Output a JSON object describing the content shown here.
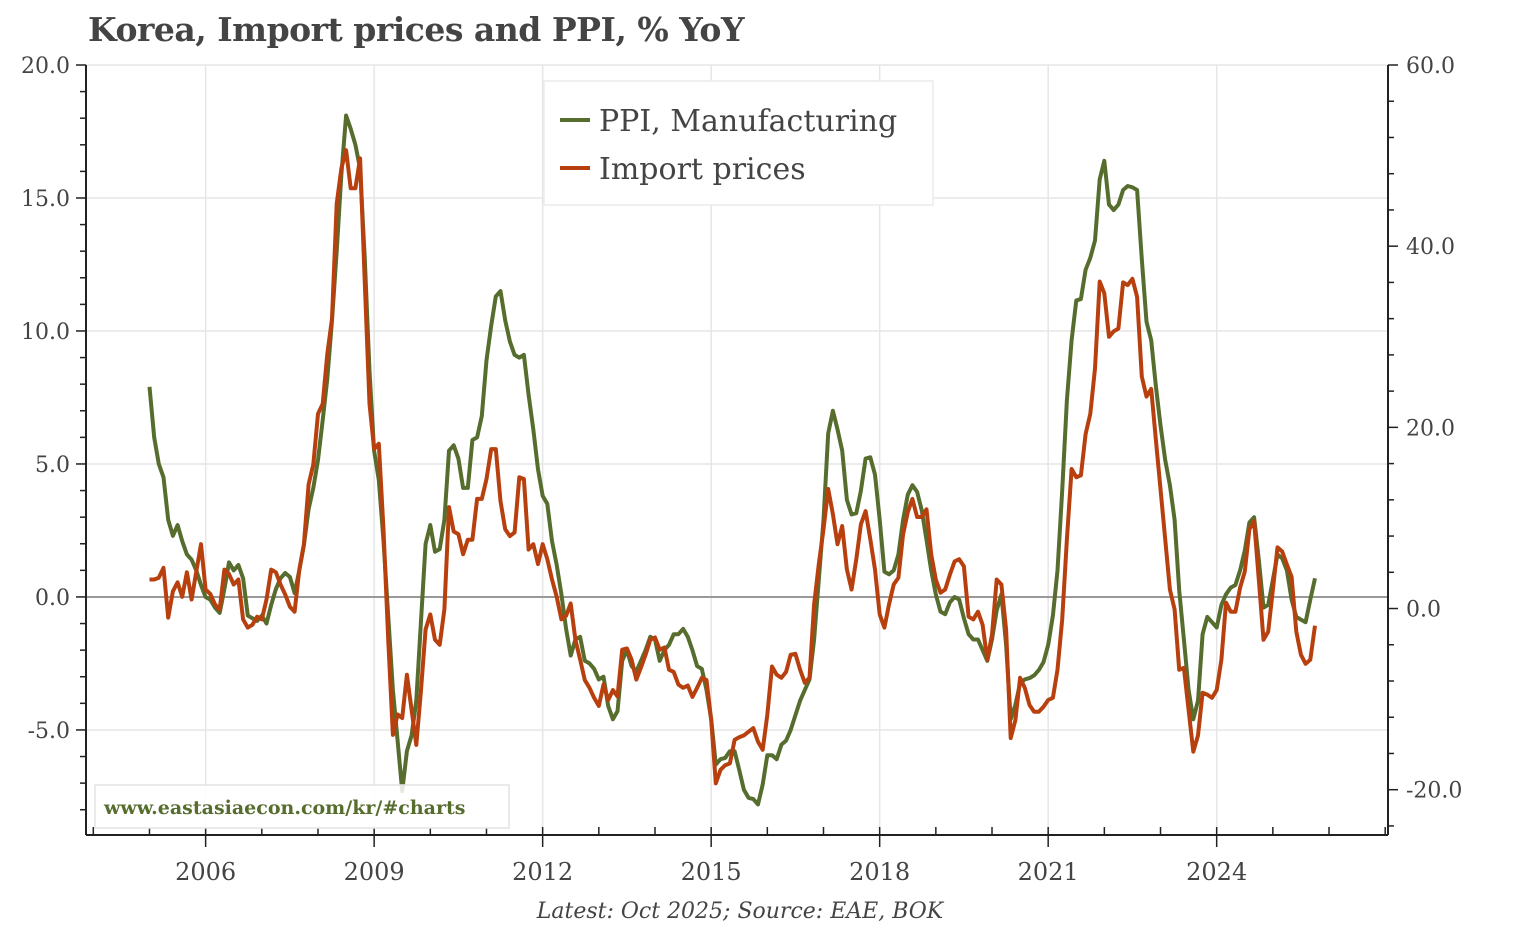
{
  "chart_data": {
    "type": "line",
    "title": "Korea, Import prices and PPI, % YoY",
    "source_note": "Latest: Oct 2025; Source: EAE, BOK",
    "watermark": "www.eastasiaecon.com/kr/#charts",
    "x_start": "2005-01",
    "x_frequency": "monthly",
    "x_ticks": [
      "2006",
      "2009",
      "2012",
      "2015",
      "2018",
      "2021",
      "2024"
    ],
    "xlim": [
      2003.87,
      2027.05
    ],
    "left_axis": {
      "series": "PPI, Manufacturing",
      "ylim": [
        -8.95,
        20.0
      ],
      "ticks": [
        "20.0",
        "15.0",
        "10.0",
        "5.0",
        "0.0",
        "-5.0"
      ],
      "tick_values": [
        20,
        15,
        10,
        5,
        0,
        -5
      ]
    },
    "right_axis": {
      "series": "Import prices",
      "ylim": [
        -25.0,
        60.0
      ],
      "ticks": [
        "60.0",
        "40.0",
        "20.0",
        "0.0",
        "-20.0"
      ],
      "tick_values": [
        60,
        40,
        20,
        0,
        -20
      ]
    },
    "grid": true,
    "legend_position": "top-center",
    "series": [
      {
        "name": "PPI, Manufacturing",
        "axis": "left",
        "color": "#566d2e",
        "values": [
          7.9,
          6.0,
          5.0,
          4.5,
          2.9,
          2.3,
          2.7,
          2.1,
          1.6,
          1.4,
          1.0,
          0.45,
          0.0,
          -0.1,
          -0.4,
          -0.6,
          0.3,
          1.3,
          1.0,
          1.2,
          0.7,
          -0.7,
          -0.8,
          -0.9,
          -0.7,
          -1.0,
          -0.3,
          0.3,
          0.7,
          0.9,
          0.75,
          0.15,
          1.0,
          1.95,
          3.3,
          4.1,
          5.15,
          6.65,
          8.2,
          10.4,
          13.0,
          15.9,
          18.1,
          17.6,
          17.0,
          16.1,
          12.7,
          8.5,
          5.5,
          4.4,
          2.1,
          -0.7,
          -3.5,
          -5.4,
          -7.3,
          -5.8,
          -5.2,
          -3.9,
          -0.9,
          2.0,
          2.7,
          1.7,
          1.8,
          2.9,
          5.5,
          5.7,
          5.2,
          4.1,
          4.1,
          5.9,
          6.0,
          6.8,
          8.9,
          10.2,
          11.3,
          11.5,
          10.4,
          9.6,
          9.1,
          9.0,
          9.1,
          7.6,
          6.3,
          4.8,
          3.8,
          3.5,
          2.1,
          1.2,
          0.1,
          -1.2,
          -2.2,
          -1.6,
          -1.5,
          -2.4,
          -2.5,
          -2.7,
          -3.1,
          -3.0,
          -4.1,
          -4.6,
          -4.3,
          -2.4,
          -2.0,
          -2.6,
          -2.8,
          -2.4,
          -2.0,
          -1.5,
          -1.6,
          -2.4,
          -2.0,
          -1.8,
          -1.4,
          -1.4,
          -1.2,
          -1.5,
          -2.0,
          -2.6,
          -2.7,
          -3.5,
          -4.6,
          -6.3,
          -6.1,
          -6.05,
          -5.8,
          -5.8,
          -6.5,
          -7.25,
          -7.55,
          -7.6,
          -7.8,
          -7.05,
          -5.95,
          -5.95,
          -6.1,
          -5.55,
          -5.4,
          -5.0,
          -4.45,
          -3.9,
          -3.5,
          -3.1,
          -1.6,
          0.65,
          2.9,
          6.15,
          7.0,
          6.3,
          5.5,
          3.65,
          3.1,
          3.15,
          4.0,
          5.2,
          5.25,
          4.6,
          2.9,
          0.95,
          0.85,
          1.0,
          1.6,
          2.9,
          3.85,
          4.2,
          3.95,
          3.25,
          2.15,
          1.0,
          0.1,
          -0.55,
          -0.65,
          -0.2,
          0.0,
          -0.1,
          -0.8,
          -1.4,
          -1.6,
          -1.6,
          -2.0,
          -2.4,
          -1.6,
          -0.5,
          0.1,
          -1.8,
          -4.6,
          -4.05,
          -3.25,
          -3.1,
          -3.05,
          -2.95,
          -2.75,
          -2.45,
          -1.8,
          -0.7,
          1.0,
          4.0,
          7.4,
          9.65,
          11.15,
          11.2,
          12.3,
          12.75,
          13.4,
          15.7,
          16.4,
          14.75,
          14.55,
          14.75,
          15.3,
          15.45,
          15.4,
          15.3,
          12.7,
          10.35,
          9.65,
          7.95,
          6.45,
          5.15,
          4.2,
          2.9,
          0.25,
          -1.6,
          -3.5,
          -4.6,
          -3.9,
          -1.4,
          -0.75,
          -0.95,
          -1.15,
          -0.3,
          0.1,
          0.35,
          0.45,
          1.0,
          1.75,
          2.8,
          3.0,
          1.4,
          -0.4,
          -0.3,
          0.65,
          1.6,
          1.45,
          1.0,
          -0.1,
          -0.75,
          -0.85,
          -0.95,
          -0.1,
          0.7
        ]
      },
      {
        "name": "Import prices",
        "axis": "right",
        "color": "#b8400f",
        "values": [
          3.2,
          3.2,
          3.4,
          4.5,
          -1.0,
          1.9,
          2.9,
          1.3,
          4.0,
          1.0,
          4.1,
          7.1,
          2.1,
          1.6,
          0.45,
          -0.1,
          4.3,
          3.8,
          2.65,
          3.2,
          -1.2,
          -2.1,
          -1.8,
          -0.9,
          -1.2,
          1.0,
          4.3,
          4.0,
          2.65,
          1.55,
          0.2,
          -0.35,
          4.3,
          7.1,
          13.7,
          15.9,
          21.5,
          22.6,
          28.1,
          32.0,
          44.7,
          48.6,
          50.6,
          46.4,
          46.4,
          49.7,
          35.9,
          22.6,
          17.6,
          18.2,
          8.75,
          -3.4,
          -13.95,
          -11.7,
          -12.1,
          -7.3,
          -11.2,
          -15.05,
          -9.0,
          -2.3,
          -0.65,
          -3.45,
          -4.0,
          -0.1,
          11.2,
          8.5,
          8.2,
          6.0,
          7.6,
          7.6,
          12.1,
          12.1,
          14.3,
          17.6,
          17.6,
          11.85,
          8.75,
          8.0,
          8.4,
          14.5,
          14.3,
          6.5,
          7.1,
          4.9,
          7.1,
          5.45,
          3.2,
          1.3,
          -1.2,
          -0.8,
          0.55,
          -3.45,
          -5.6,
          -7.9,
          -8.75,
          -9.85,
          -10.75,
          -8.4,
          -10.1,
          -9.0,
          -9.7,
          -4.55,
          -4.4,
          -5.65,
          -7.85,
          -6.5,
          -5.1,
          -3.45,
          -3.2,
          -4.55,
          -4.3,
          -6.75,
          -7.0,
          -8.4,
          -8.75,
          -8.5,
          -9.75,
          -8.75,
          -7.65,
          -7.9,
          -12.3,
          -19.3,
          -17.8,
          -17.3,
          -17.1,
          -14.5,
          -14.2,
          -14.0,
          -13.6,
          -13.2,
          -14.7,
          -15.6,
          -11.75,
          -6.4,
          -7.3,
          -7.65,
          -7.0,
          -5.1,
          -5.0,
          -6.75,
          -8.2,
          -7.65,
          0.45,
          4.9,
          8.75,
          13.2,
          10.4,
          7.1,
          9.1,
          4.3,
          2.1,
          5.45,
          9.3,
          10.75,
          7.65,
          4.3,
          -0.65,
          -2.1,
          0.45,
          2.65,
          3.4,
          8.2,
          10.65,
          12.1,
          10.1,
          10.1,
          10.95,
          6.0,
          3.2,
          1.75,
          2.1,
          3.75,
          5.2,
          5.45,
          4.65,
          -0.9,
          -1.2,
          -0.35,
          -1.8,
          -5.65,
          -2.9,
          3.2,
          2.65,
          -2.3,
          -14.3,
          -12.3,
          -7.65,
          -8.75,
          -10.65,
          -11.4,
          -11.4,
          -10.85,
          -10.1,
          -9.85,
          -6.75,
          -1.2,
          7.65,
          15.4,
          14.5,
          14.7,
          19.25,
          21.5,
          26.5,
          36.1,
          34.8,
          30.0,
          30.6,
          30.9,
          36.0,
          35.7,
          36.4,
          34.4,
          25.6,
          23.4,
          24.25,
          18.7,
          13.2,
          7.65,
          2.1,
          -0.1,
          -6.75,
          -6.55,
          -11.2,
          -15.8,
          -14.0,
          -9.3,
          -9.5,
          -9.85,
          -9.0,
          -5.65,
          0.65,
          -0.35,
          -0.35,
          2.3,
          4.1,
          8.75,
          9.65,
          3.2,
          -3.45,
          -2.55,
          2.1,
          6.75,
          6.3,
          4.85,
          3.5,
          -2.55,
          -5.1,
          -6.1,
          -5.65,
          -1.9
        ]
      }
    ]
  }
}
